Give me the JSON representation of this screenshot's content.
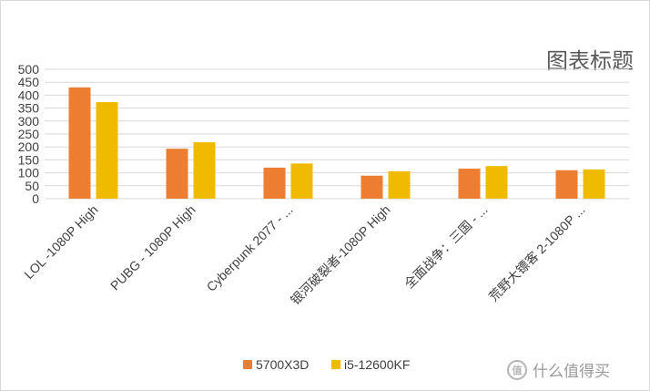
{
  "chart_data": {
    "type": "bar",
    "title": "图表标题",
    "categories": [
      "LOL -1080P High",
      "PUBG - 1080P High",
      "Cyberpunk 2077 - ...",
      "银河破裂者-1080P High",
      "全面战争：三国 - ...",
      "荒野大镖客 2-1080P ..."
    ],
    "series": [
      {
        "name": "5700X3D",
        "color": "#ED7D31",
        "values": [
          430,
          193,
          120,
          89,
          116,
          110
        ]
      },
      {
        "name": "i5-12600KF",
        "color": "#F0BA00",
        "values": [
          373,
          218,
          136,
          106,
          126,
          113
        ]
      }
    ],
    "ylim": [
      0,
      500
    ],
    "yticks": [
      0,
      50,
      100,
      150,
      200,
      250,
      300,
      350,
      400,
      450,
      500
    ],
    "grid": true,
    "legend": "bottom"
  },
  "watermark": {
    "logo_text": "值",
    "text": "什么值得买"
  }
}
